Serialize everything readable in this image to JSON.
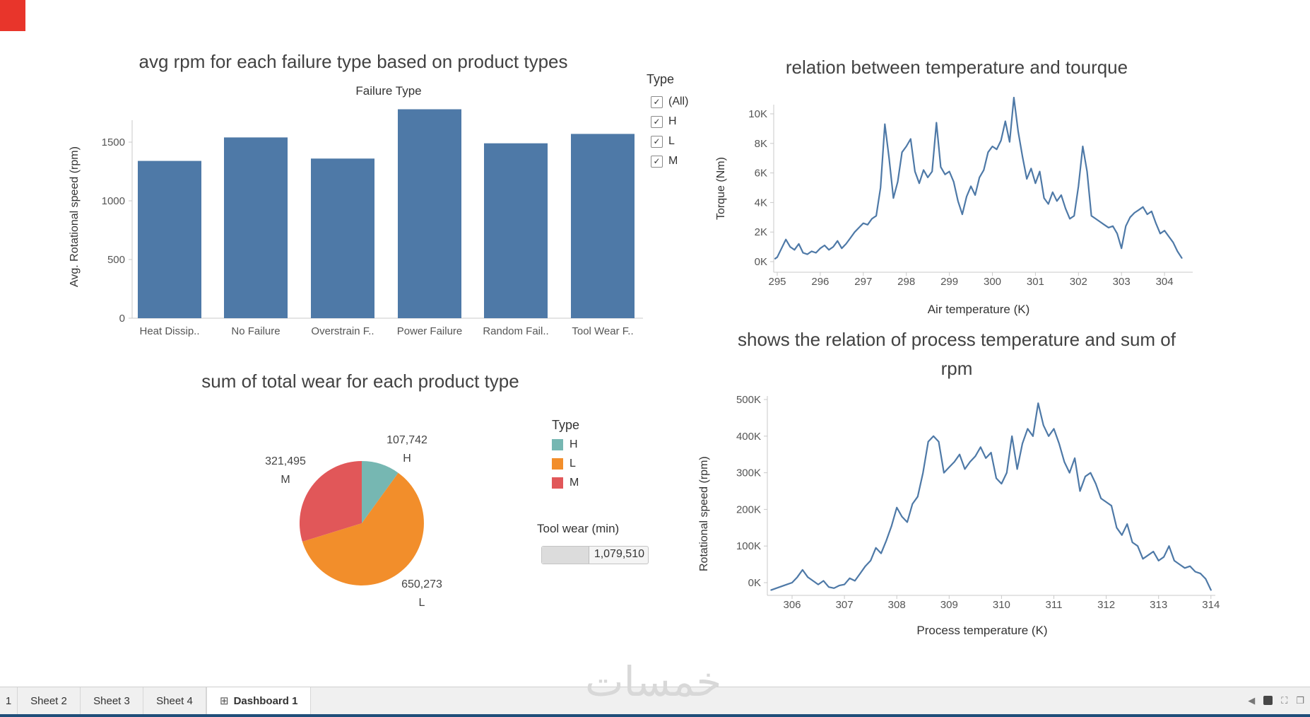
{
  "type_filter": {
    "title": "Type",
    "options": [
      "(All)",
      "H",
      "L",
      "M"
    ]
  },
  "legend": {
    "title": "Type",
    "items": [
      {
        "label": "H",
        "color": "#76b7b2"
      },
      {
        "label": "L",
        "color": "#f28e2b"
      },
      {
        "label": "M",
        "color": "#e15759"
      }
    ]
  },
  "tool_wear": {
    "title": "Tool wear (min)",
    "value": "1,079,510"
  },
  "watermark": "خمسات",
  "tabs": {
    "partial": "1",
    "items": [
      {
        "label": "Sheet 2"
      },
      {
        "label": "Sheet 3"
      },
      {
        "label": "Sheet 4"
      },
      {
        "label": "Dashboard 1",
        "active": true
      }
    ],
    "grid_icon": "⊞"
  },
  "tab_icons": {
    "back": "◀",
    "expand": "⛶",
    "window": "❐"
  },
  "chart_data": [
    {
      "type": "bar",
      "title": "avg rpm for each failure type based on product types",
      "x_axis_title": "Failure Type",
      "ylabel": "Avg. Rotational speed (rpm)",
      "categories": [
        "Heat Dissip..",
        "No Failure",
        "Overstrain F..",
        "Power Failure",
        "Random Fail..",
        "Tool Wear F.."
      ],
      "values": [
        1340,
        1540,
        1360,
        1780,
        1490,
        1570
      ],
      "ylim": [
        0,
        1875
      ],
      "yticks": [
        0,
        500,
        1000,
        1500
      ],
      "ytick_labels": [
        "0",
        "500",
        "1000",
        "1500"
      ],
      "bar_color": "#4e79a7",
      "grid": false
    },
    {
      "type": "line",
      "title": "relation between temperature and tourque",
      "xlabel": "Air temperature (K)",
      "ylabel": "Torque (Nm)",
      "xlim": [
        294.8,
        304.8
      ],
      "ylim": [
        0,
        11.5
      ],
      "xticks": [
        295,
        296,
        297,
        298,
        299,
        300,
        301,
        302,
        303,
        304
      ],
      "yticks": [
        0,
        2,
        4,
        6,
        8,
        10
      ],
      "ytick_labels": [
        "0K",
        "2K",
        "4K",
        "6K",
        "8K",
        "10K"
      ],
      "color": "#4e79a7",
      "x": [
        294.95,
        295.0,
        295.1,
        295.2,
        295.3,
        295.4,
        295.5,
        295.6,
        295.7,
        295.8,
        295.9,
        296.0,
        296.1,
        296.2,
        296.3,
        296.4,
        296.5,
        296.6,
        296.7,
        296.8,
        296.9,
        297.0,
        297.1,
        297.2,
        297.3,
        297.4,
        297.5,
        297.6,
        297.7,
        297.8,
        297.9,
        298.0,
        298.1,
        298.2,
        298.3,
        298.4,
        298.5,
        298.6,
        298.7,
        298.8,
        298.9,
        299.0,
        299.1,
        299.2,
        299.3,
        299.4,
        299.5,
        299.6,
        299.7,
        299.8,
        299.9,
        300.0,
        300.1,
        300.2,
        300.3,
        300.4,
        300.5,
        300.6,
        300.7,
        300.8,
        300.9,
        301.0,
        301.1,
        301.2,
        301.3,
        301.4,
        301.5,
        301.6,
        301.7,
        301.8,
        301.9,
        302.0,
        302.1,
        302.2,
        302.3,
        302.4,
        302.5,
        302.6,
        302.7,
        302.8,
        302.9,
        303.0,
        303.1,
        303.2,
        303.3,
        303.4,
        303.5,
        303.6,
        303.7,
        303.8,
        303.9,
        304.0,
        304.1,
        304.2,
        304.3,
        304.4
      ],
      "y": [
        0.2,
        0.3,
        0.9,
        1.5,
        1.0,
        0.8,
        1.2,
        0.6,
        0.5,
        0.7,
        0.6,
        0.9,
        1.1,
        0.8,
        1.0,
        1.4,
        0.9,
        1.2,
        1.6,
        2.0,
        2.3,
        2.6,
        2.5,
        2.9,
        3.1,
        5.0,
        9.3,
        7.0,
        4.3,
        5.4,
        7.4,
        7.8,
        8.3,
        6.1,
        5.3,
        6.2,
        5.7,
        6.1,
        9.4,
        6.4,
        5.9,
        6.1,
        5.4,
        4.1,
        3.2,
        4.4,
        5.1,
        4.5,
        5.7,
        6.2,
        7.4,
        7.8,
        7.6,
        8.2,
        9.5,
        8.1,
        11.1,
        8.8,
        7.1,
        5.6,
        6.3,
        5.3,
        6.1,
        4.3,
        3.9,
        4.7,
        4.1,
        4.5,
        3.6,
        2.9,
        3.1,
        5.1,
        7.8,
        6.1,
        3.1,
        2.9,
        2.7,
        2.5,
        2.3,
        2.4,
        1.9,
        0.9,
        2.4,
        3.0,
        3.3,
        3.5,
        3.7,
        3.2,
        3.4,
        2.6,
        1.9,
        2.1,
        1.7,
        1.3,
        0.7,
        0.25
      ]
    },
    {
      "type": "pie",
      "title": "sum of total wear for each product type",
      "slices": [
        {
          "label": "H",
          "value": 107742,
          "display": "107,742",
          "color": "#76b7b2"
        },
        {
          "label": "L",
          "value": 650273,
          "display": "650,273",
          "color": "#f28e2b"
        },
        {
          "label": "M",
          "value": 321495,
          "display": "321,495",
          "color": "#e15759"
        }
      ],
      "total": 1079510
    },
    {
      "type": "line",
      "title": "shows the relation of process temperature and sum of rpm",
      "xlabel": "Process temperature (K)",
      "ylabel": "Rotational speed (rpm)",
      "xlim": [
        305.5,
        314.2
      ],
      "ylim": [
        -30,
        520
      ],
      "xticks": [
        306,
        307,
        308,
        309,
        310,
        311,
        312,
        313,
        314
      ],
      "yticks": [
        0,
        100,
        200,
        300,
        400,
        500
      ],
      "ytick_labels": [
        "0K",
        "100K",
        "200K",
        "300K",
        "400K",
        "500K"
      ],
      "color": "#4e79a7",
      "x": [
        305.6,
        305.7,
        305.8,
        305.9,
        306.0,
        306.1,
        306.2,
        306.3,
        306.4,
        306.5,
        306.6,
        306.7,
        306.8,
        306.9,
        307.0,
        307.1,
        307.2,
        307.3,
        307.4,
        307.5,
        307.6,
        307.7,
        307.8,
        307.9,
        308.0,
        308.1,
        308.2,
        308.3,
        308.4,
        308.5,
        308.6,
        308.7,
        308.8,
        308.9,
        309.0,
        309.1,
        309.2,
        309.3,
        309.4,
        309.5,
        309.6,
        309.7,
        309.8,
        309.9,
        310.0,
        310.1,
        310.2,
        310.3,
        310.4,
        310.5,
        310.6,
        310.7,
        310.8,
        310.9,
        311.0,
        311.1,
        311.2,
        311.3,
        311.4,
        311.5,
        311.6,
        311.7,
        311.8,
        311.9,
        312.0,
        312.1,
        312.2,
        312.3,
        312.4,
        312.5,
        312.6,
        312.7,
        312.8,
        312.9,
        313.0,
        313.1,
        313.2,
        313.3,
        313.4,
        313.5,
        313.6,
        313.7,
        313.8,
        313.9,
        314.0
      ],
      "y": [
        -20,
        -15,
        -10,
        -5,
        0,
        15,
        35,
        15,
        5,
        -5,
        5,
        -12,
        -15,
        -8,
        -5,
        12,
        5,
        25,
        45,
        60,
        95,
        80,
        115,
        155,
        205,
        180,
        165,
        215,
        235,
        300,
        385,
        400,
        385,
        300,
        315,
        330,
        350,
        310,
        330,
        345,
        370,
        340,
        355,
        285,
        270,
        300,
        400,
        310,
        380,
        420,
        400,
        490,
        430,
        400,
        420,
        380,
        330,
        300,
        340,
        250,
        290,
        300,
        270,
        230,
        220,
        210,
        150,
        130,
        160,
        110,
        100,
        65,
        75,
        85,
        60,
        70,
        100,
        60,
        50,
        40,
        45,
        30,
        25,
        10,
        -20
      ]
    }
  ]
}
